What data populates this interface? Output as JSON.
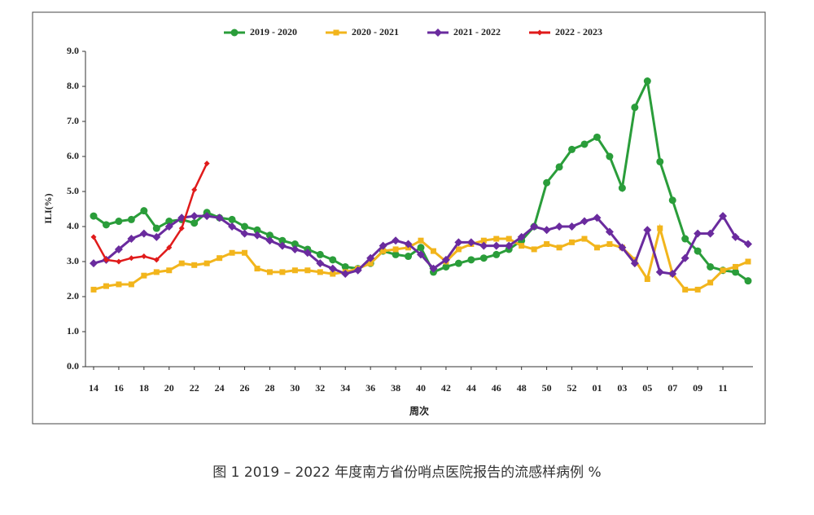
{
  "chart_data": {
    "type": "line",
    "caption": "图 1 2019 – 2022 年度南方省份哨点医院报告的流感样病例 %",
    "y_label": "ILI(%)",
    "x_label": "周次",
    "categories": [
      "14",
      null,
      "16",
      null,
      "18",
      null,
      "20",
      null,
      "22",
      null,
      "24",
      null,
      "26",
      null,
      "28",
      null,
      "30",
      null,
      "32",
      null,
      "34",
      null,
      "36",
      null,
      "38",
      null,
      "40",
      null,
      "42",
      null,
      "44",
      null,
      "46",
      null,
      "48",
      null,
      "50",
      null,
      "52",
      null,
      "01",
      null,
      "03",
      null,
      "05",
      null,
      "07",
      null,
      "09",
      null,
      "11",
      null,
      null
    ],
    "ylim": [
      0,
      9
    ],
    "yticks": [
      {
        "value": 0,
        "label": "0.0"
      },
      {
        "value": 1,
        "label": "1.0"
      },
      {
        "value": 2,
        "label": "2.0"
      },
      {
        "value": 3,
        "label": "3.0"
      },
      {
        "value": 4,
        "label": "4.0"
      },
      {
        "value": 5,
        "label": "5.0"
      },
      {
        "value": 6,
        "label": "6.0"
      },
      {
        "value": 7,
        "label": "7.0"
      },
      {
        "value": 8,
        "label": "8.0"
      },
      {
        "value": 9,
        "label": "9.0"
      }
    ],
    "legend": "top",
    "series": [
      {
        "name": "2019 - 2020",
        "color": "#2a9d3a",
        "marker": "circle",
        "values": [
          4.3,
          4.05,
          4.15,
          4.2,
          4.45,
          3.95,
          4.15,
          4.2,
          4.1,
          4.4,
          4.25,
          4.2,
          4.0,
          3.9,
          3.75,
          3.6,
          3.5,
          3.35,
          3.2,
          3.05,
          2.85,
          2.8,
          2.95,
          3.3,
          3.2,
          3.15,
          3.4,
          2.7,
          2.85,
          2.95,
          3.05,
          3.1,
          3.2,
          3.35,
          3.6,
          4.0,
          5.25,
          5.7,
          6.2,
          6.35,
          6.55,
          6.0,
          5.1,
          7.4,
          8.15,
          5.85,
          4.75,
          3.65,
          3.3,
          2.85,
          2.75,
          2.7,
          2.45
        ]
      },
      {
        "name": "2020 - 2021",
        "color": "#f2b51c",
        "marker": "square",
        "values": [
          2.2,
          2.3,
          2.35,
          2.35,
          2.6,
          2.7,
          2.75,
          2.95,
          2.9,
          2.95,
          3.1,
          3.25,
          3.25,
          2.8,
          2.7,
          2.7,
          2.75,
          2.75,
          2.7,
          2.65,
          2.7,
          2.8,
          2.95,
          3.3,
          3.35,
          3.4,
          3.6,
          3.3,
          3.0,
          3.35,
          3.5,
          3.6,
          3.65,
          3.65,
          3.45,
          3.35,
          3.5,
          3.4,
          3.55,
          3.65,
          3.4,
          3.5,
          3.4,
          3.05,
          2.5,
          3.95,
          2.65,
          2.2,
          2.2,
          2.4,
          2.75,
          2.85,
          3.0
        ]
      },
      {
        "name": "2021 - 2022",
        "color": "#6a2b9e",
        "marker": "diamond",
        "values": [
          2.95,
          3.05,
          3.35,
          3.65,
          3.8,
          3.7,
          4.0,
          4.25,
          4.3,
          4.3,
          4.25,
          4.0,
          3.8,
          3.75,
          3.6,
          3.45,
          3.35,
          3.25,
          2.95,
          2.8,
          2.65,
          2.75,
          3.1,
          3.45,
          3.6,
          3.5,
          3.2,
          2.8,
          3.05,
          3.55,
          3.55,
          3.45,
          3.45,
          3.45,
          3.7,
          4.0,
          3.9,
          4.0,
          4.0,
          4.15,
          4.25,
          3.85,
          3.4,
          2.95,
          3.9,
          2.7,
          2.65,
          3.1,
          3.8,
          3.8,
          4.3,
          3.7,
          3.5
        ]
      },
      {
        "name": "2022 - 2023",
        "color": "#e01b1b",
        "marker": "small-diamond",
        "values": [
          3.7,
          3.05,
          3.0,
          3.1,
          3.15,
          3.05,
          3.4,
          3.95,
          5.05,
          5.8,
          null,
          null,
          null,
          null,
          null,
          null,
          null,
          null,
          null,
          null,
          null,
          null,
          null,
          null,
          null,
          null,
          null,
          null,
          null,
          null,
          null,
          null,
          null,
          null,
          null,
          null,
          null,
          null,
          null,
          null,
          null,
          null,
          null,
          null,
          null,
          null,
          null,
          null,
          null,
          null,
          null,
          null,
          null
        ]
      }
    ]
  }
}
